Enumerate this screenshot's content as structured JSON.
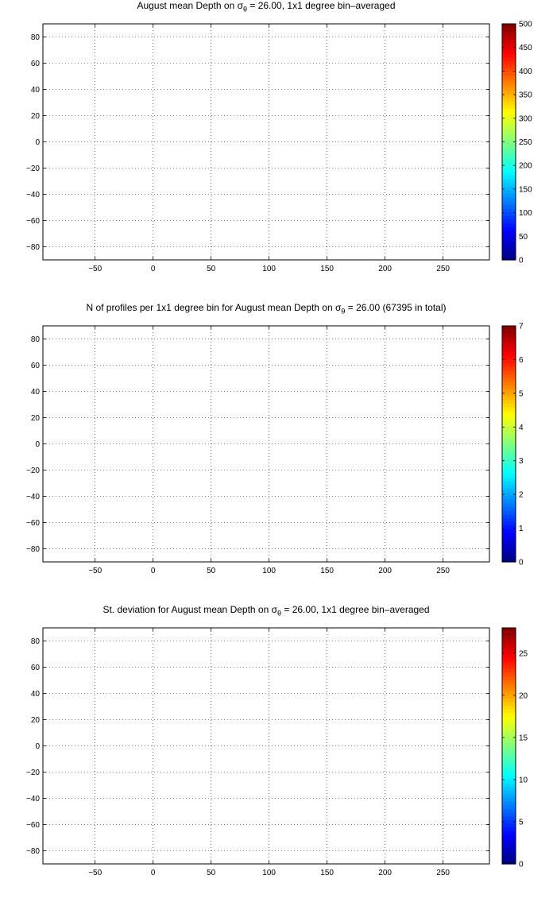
{
  "chart_data": [
    {
      "type": "heatmap",
      "title_pre": "August mean Depth on ",
      "title_sym": "σ",
      "title_sub": "θ",
      "title_post": " = 26.00, 1x1 degree bin–averaged",
      "xticks": [
        -50,
        0,
        50,
        100,
        150,
        200,
        250
      ],
      "yticks": [
        80,
        60,
        40,
        20,
        0,
        -20,
        -40,
        -60,
        -80
      ],
      "xlim": [
        -95,
        290
      ],
      "ylim": [
        -90,
        90
      ],
      "colorbar": {
        "min": 0,
        "max": 500,
        "ticks": [
          0,
          50,
          100,
          150,
          200,
          250,
          300,
          350,
          400,
          450,
          500
        ],
        "colormap": "jet"
      },
      "grid": true
    },
    {
      "type": "heatmap",
      "title_pre": "N of profiles per 1x1 degree bin for August mean Depth on ",
      "title_sym": "σ",
      "title_sub": "θ",
      "title_post": " = 26.00 (67395 in total)",
      "xticks": [
        -50,
        0,
        50,
        100,
        150,
        200,
        250
      ],
      "yticks": [
        80,
        60,
        40,
        20,
        0,
        -20,
        -40,
        -60,
        -80
      ],
      "xlim": [
        -95,
        290
      ],
      "ylim": [
        -90,
        90
      ],
      "colorbar": {
        "min": 0,
        "max": 7,
        "ticks": [
          0,
          1,
          2,
          3,
          4,
          5,
          6,
          7
        ],
        "colormap": "jet"
      },
      "grid": true
    },
    {
      "type": "heatmap",
      "title_pre": "St. deviation for August mean Depth on ",
      "title_sym": "σ",
      "title_sub": "θ",
      "title_post": " = 26.00, 1x1 degree bin–averaged",
      "xticks": [
        -50,
        0,
        50,
        100,
        150,
        200,
        250
      ],
      "yticks": [
        80,
        60,
        40,
        20,
        0,
        -20,
        -40,
        -60,
        -80
      ],
      "xlim": [
        -95,
        290
      ],
      "ylim": [
        -90,
        90
      ],
      "colorbar": {
        "min": 0,
        "max": 28,
        "ticks": [
          0,
          5,
          10,
          15,
          20,
          25
        ],
        "colormap": "jet"
      },
      "grid": true
    }
  ]
}
